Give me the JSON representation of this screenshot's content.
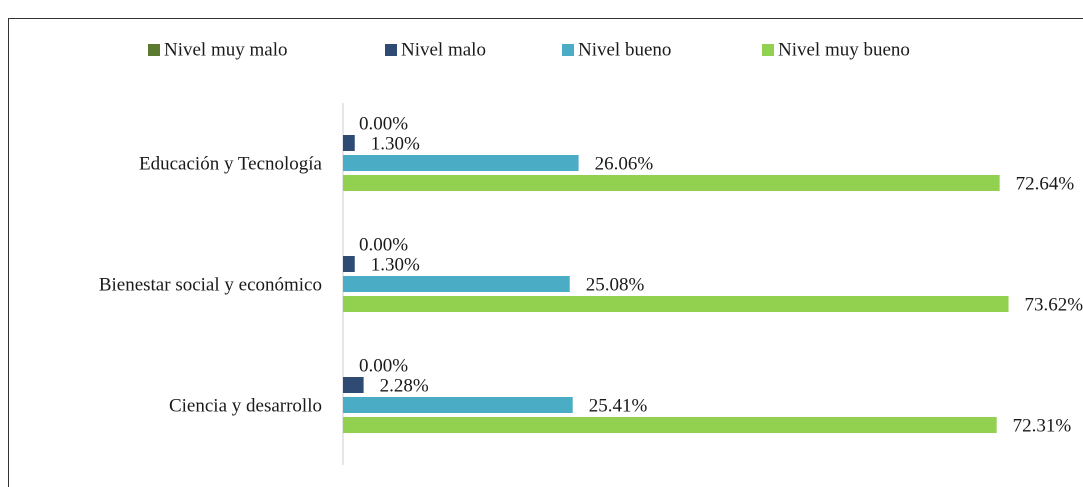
{
  "chart_data": {
    "type": "hbar",
    "categories": [
      "Educación y Tecnología",
      "Bienestar social y económico",
      "Ciencia y desarrollo"
    ],
    "series": [
      {
        "name": "Nivel muy malo",
        "color": "#5b7a2f",
        "values": [
          0,
          0,
          0
        ],
        "value_labels": [
          "0.00%",
          "0.00%",
          "0.00%"
        ]
      },
      {
        "name": "Nivel malo",
        "color": "#2f4b74",
        "values": [
          1.3,
          1.3,
          2.28
        ],
        "value_labels": [
          "1.30%",
          "1.30%",
          "2.28%"
        ]
      },
      {
        "name": "Nivel bueno",
        "color": "#4bacc6",
        "values": [
          26.06,
          25.08,
          25.41
        ],
        "value_labels": [
          "26.06%",
          "25.08%",
          "25.41%"
        ]
      },
      {
        "name": "Nivel muy bueno",
        "color": "#92d050",
        "values": [
          72.64,
          73.62,
          72.31
        ],
        "value_labels": [
          "72.64%",
          "73.62%",
          "72.31%"
        ]
      }
    ],
    "xlim": [
      0,
      80
    ],
    "legend": "top"
  }
}
